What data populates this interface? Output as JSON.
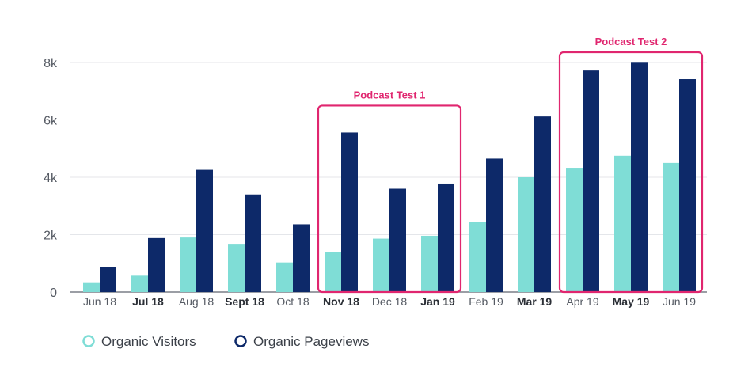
{
  "chart_data": {
    "type": "bar",
    "title": "",
    "xlabel": "",
    "ylabel": "",
    "ylim": [
      0,
      8000
    ],
    "yticks": [
      {
        "value": 0,
        "label": "0"
      },
      {
        "value": 2000,
        "label": "2k"
      },
      {
        "value": 4000,
        "label": "4k"
      },
      {
        "value": 6000,
        "label": "6k"
      },
      {
        "value": 8000,
        "label": "8k"
      }
    ],
    "grid": true,
    "categories": [
      "Jun 18",
      "Jul 18",
      "Aug 18",
      "Sept 18",
      "Oct 18",
      "Nov 18",
      "Dec 18",
      "Jan 19",
      "Feb 19",
      "Mar 19",
      "Apr 19",
      "May 19",
      "Jun 19"
    ],
    "bold_categories": [
      "Jul 18",
      "Sept 18",
      "Nov 18",
      "Jan 19",
      "Mar 19",
      "May 19"
    ],
    "series": [
      {
        "name": "Organic Visitors",
        "color": "#7fddd6",
        "values": [
          340,
          570,
          1900,
          1680,
          1030,
          1390,
          1860,
          1960,
          2450,
          4000,
          4330,
          4750,
          4500
        ]
      },
      {
        "name": "Organic Pageviews",
        "color": "#0d2969",
        "values": [
          870,
          1880,
          4260,
          3400,
          2360,
          5560,
          3600,
          3780,
          4650,
          6120,
          7720,
          8020,
          7420
        ]
      }
    ],
    "annotations": [
      {
        "label": "Podcast Test 1",
        "from": "Nov 18",
        "to": "Jan 19",
        "color": "#e0266f"
      },
      {
        "label": "Podcast Test 2",
        "from": "Apr 19",
        "to": "Jun 19",
        "color": "#e0266f"
      }
    ],
    "legend": {
      "position": "bottom-left"
    }
  }
}
